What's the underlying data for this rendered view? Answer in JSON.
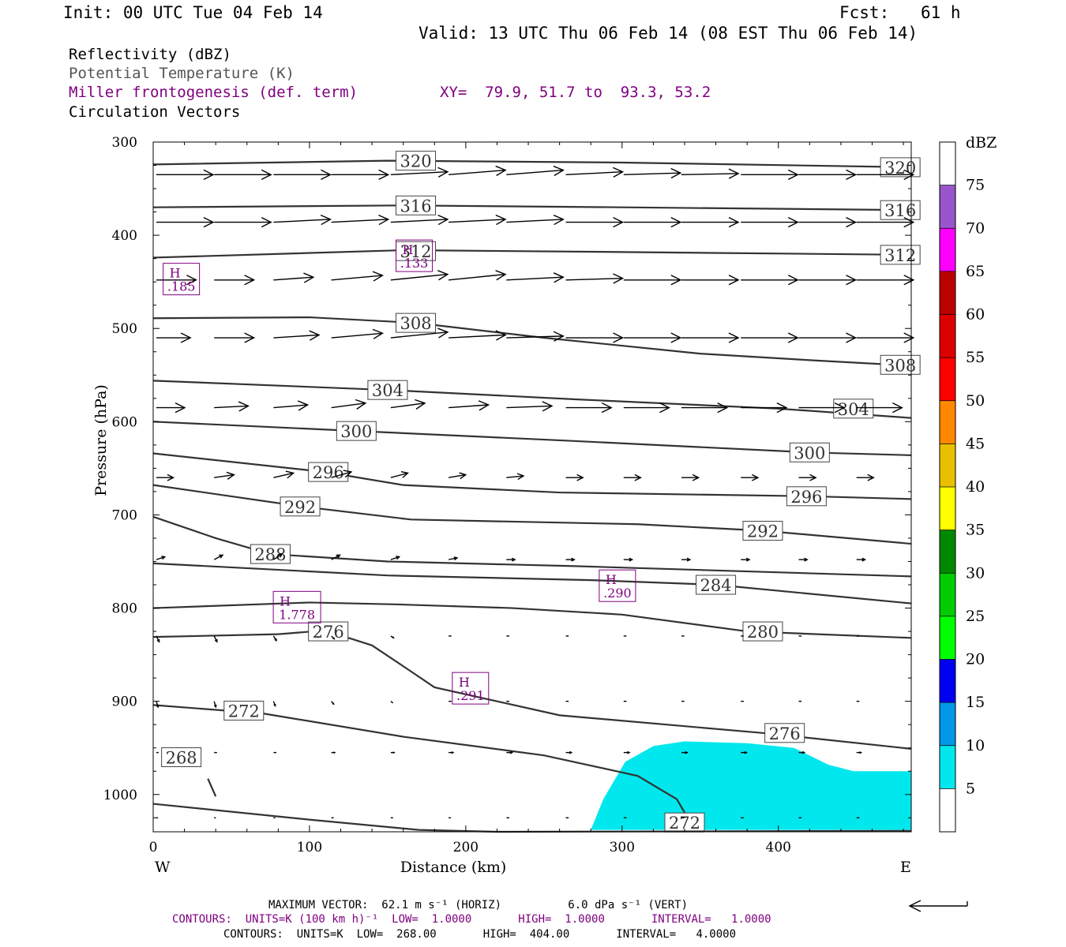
{
  "header": {
    "init": "Init: 00 UTC Tue 04 Feb 14",
    "fcst_label": "Fcst:",
    "fcst_value": "61 h",
    "valid": "Valid: 13 UTC Thu 06 Feb 14 (08 EST Thu 06 Feb 14)"
  },
  "fields": {
    "reflectivity": "Reflectivity (dBZ)",
    "theta": "Potential Temperature (K)",
    "frontogenesis": "Miller frontogenesis (def. term)",
    "xy": "XY=  79.9, 51.7 to  93.3, 53.2",
    "vectors": "Circulation Vectors"
  },
  "footer": {
    "max_vector": "MAXIMUM VECTOR:  62.1 m s⁻¹ (HORIZ)          6.0 dPa s⁻¹ (VERT)",
    "contours_fronto": "CONTOURS:  UNITS=K (100 km h)⁻¹  LOW=  1.0000       HIGH=  1.0000       INTERVAL=   1.0000",
    "contours_theta": "CONTOURS:  UNITS=K  LOW=  268.00       HIGH=  404.00       INTERVAL=   4.0000"
  },
  "colors": {
    "theta": "#333333",
    "fronto": "#800080",
    "refl_fill": "#00e8ee"
  },
  "chart_data": {
    "type": "cross-section",
    "xlabel": "Distance (km)",
    "ylabel": "Pressure (hPa)",
    "xlim": [
      0,
      485
    ],
    "ylim": [
      1040,
      300
    ],
    "x_ticks": [
      0,
      100,
      200,
      300,
      400
    ],
    "y_ticks": [
      300,
      400,
      500,
      600,
      700,
      800,
      900,
      1000
    ],
    "west_label": "W",
    "east_label": "E",
    "colorbar": {
      "title": "dBZ",
      "levels": [
        5,
        10,
        15,
        20,
        25,
        30,
        35,
        40,
        45,
        50,
        55,
        60,
        65,
        70,
        75
      ],
      "colors": [
        "#ffffff",
        "#00e8ee",
        "#0098e8",
        "#0000f0",
        "#00ff00",
        "#00cc00",
        "#008800",
        "#ffff00",
        "#e8c000",
        "#ff8800",
        "#ff0000",
        "#dd0000",
        "#bb0000",
        "#ff00ff",
        "#9955cc",
        "#ffffff"
      ]
    },
    "theta_contours": [
      {
        "value": 320,
        "points": [
          [
            0,
            324
          ],
          [
            150,
            320
          ],
          [
            300,
            322
          ],
          [
            485,
            327
          ]
        ],
        "labels": [
          [
            168,
            320
          ],
          [
            478,
            327
          ]
        ]
      },
      {
        "value": 316,
        "points": [
          [
            0,
            370
          ],
          [
            160,
            368
          ],
          [
            300,
            370
          ],
          [
            485,
            373
          ]
        ],
        "labels": [
          [
            168,
            368
          ],
          [
            478,
            373
          ]
        ]
      },
      {
        "value": 312,
        "points": [
          [
            0,
            424
          ],
          [
            160,
            416
          ],
          [
            300,
            418
          ],
          [
            485,
            421
          ]
        ],
        "labels": [
          [
            168,
            417
          ],
          [
            478,
            421
          ]
        ]
      },
      {
        "value": 308,
        "points": [
          [
            0,
            489
          ],
          [
            100,
            488
          ],
          [
            168,
            494
          ],
          [
            250,
            510
          ],
          [
            350,
            527
          ],
          [
            420,
            534
          ],
          [
            485,
            540
          ]
        ],
        "labels": [
          [
            168,
            494
          ],
          [
            478,
            539
          ]
        ]
      },
      {
        "value": 304,
        "points": [
          [
            0,
            556
          ],
          [
            150,
            566
          ],
          [
            270,
            576
          ],
          [
            400,
            586
          ],
          [
            485,
            596
          ]
        ],
        "labels": [
          [
            150,
            566
          ],
          [
            448,
            586
          ]
        ]
      },
      {
        "value": 300,
        "points": [
          [
            0,
            600
          ],
          [
            130,
            610
          ],
          [
            260,
            620
          ],
          [
            420,
            633
          ],
          [
            485,
            636
          ]
        ],
        "labels": [
          [
            130,
            610
          ],
          [
            420,
            633
          ]
        ]
      },
      {
        "value": 296,
        "points": [
          [
            0,
            634
          ],
          [
            110,
            654
          ],
          [
            160,
            668
          ],
          [
            260,
            676
          ],
          [
            420,
            680
          ],
          [
            485,
            683
          ]
        ],
        "labels": [
          [
            112,
            654
          ],
          [
            418,
            680
          ]
        ]
      },
      {
        "value": 292,
        "points": [
          [
            0,
            668
          ],
          [
            95,
            691
          ],
          [
            165,
            705
          ],
          [
            310,
            710
          ],
          [
            390,
            717
          ],
          [
            485,
            731
          ]
        ],
        "labels": [
          [
            94,
            691
          ],
          [
            390,
            717
          ]
        ]
      },
      {
        "value": 288,
        "points": [
          [
            0,
            702
          ],
          [
            40,
            725
          ],
          [
            75,
            742
          ],
          [
            150,
            750
          ],
          [
            270,
            755
          ],
          [
            485,
            766
          ]
        ],
        "labels": [
          [
            75,
            742
          ]
        ]
      },
      {
        "value": 284,
        "points": [
          [
            0,
            752
          ],
          [
            150,
            765
          ],
          [
            280,
            770
          ],
          [
            360,
            775
          ],
          [
            485,
            795
          ]
        ],
        "labels": [
          [
            360,
            775
          ]
        ]
      },
      {
        "value": 280,
        "points": [
          [
            0,
            800
          ],
          [
            100,
            794
          ],
          [
            155,
            796
          ],
          [
            230,
            800
          ],
          [
            300,
            807
          ],
          [
            380,
            825
          ],
          [
            485,
            832
          ]
        ],
        "labels": [
          [
            390,
            825
          ]
        ]
      },
      {
        "value": 276,
        "points": [
          [
            0,
            831
          ],
          [
            80,
            828
          ],
          [
            110,
            824
          ],
          [
            140,
            840
          ],
          [
            165,
            868
          ],
          [
            180,
            885
          ],
          [
            260,
            915
          ],
          [
            390,
            934
          ],
          [
            485,
            951
          ]
        ],
        "labels": [
          [
            112,
            825
          ],
          [
            404,
            934
          ]
        ]
      },
      {
        "value": 272,
        "points": [
          [
            0,
            904
          ],
          [
            70,
            913
          ],
          [
            160,
            938
          ],
          [
            250,
            958
          ],
          [
            310,
            980
          ],
          [
            335,
            1005
          ],
          [
            342,
            1025
          ]
        ],
        "labels": [
          [
            58,
            910
          ],
          [
            340,
            1030
          ]
        ]
      },
      {
        "value": 272,
        "points": [
          [
            0,
            1010
          ],
          [
            100,
            1027
          ],
          [
            170,
            1038
          ],
          [
            220,
            1040
          ],
          [
            485,
            1039
          ]
        ],
        "labels": []
      },
      {
        "value": 268,
        "points": [
          [
            35,
            983
          ],
          [
            40,
            1002
          ]
        ],
        "labels": [
          [
            18,
            960
          ]
        ]
      }
    ],
    "fronto_maxima": [
      {
        "label": "H",
        "value": ".185",
        "x": 18,
        "p": 447
      },
      {
        "label": "H",
        "value": ".133",
        "x": 167,
        "p": 422
      },
      {
        "label": "H",
        "value": ".290",
        "x": 297,
        "p": 776
      },
      {
        "label": "H",
        "value": "1.778",
        "x": 92,
        "p": 799
      },
      {
        "label": "H",
        "value": ".291",
        "x": 203,
        "p": 886
      }
    ],
    "reflectivity_area": {
      "dbz_min": 5,
      "points": [
        [
          280,
          1038
        ],
        [
          288,
          1005
        ],
        [
          302,
          965
        ],
        [
          320,
          948
        ],
        [
          340,
          943
        ],
        [
          380,
          945
        ],
        [
          410,
          950
        ],
        [
          432,
          968
        ],
        [
          448,
          975
        ],
        [
          485,
          975
        ],
        [
          485,
          1038
        ],
        [
          280,
          1038
        ]
      ]
    },
    "vector_rows": [
      {
        "p": 335,
        "u": [
          1.0,
          1.0,
          1.0,
          1.0,
          1.0,
          1.0,
          1.0,
          1.0,
          1.0,
          1.0,
          1.0,
          1.0,
          1.0
        ],
        "w": [
          0,
          0,
          0,
          0,
          0.05,
          0.08,
          0.08,
          0.05,
          0.03,
          0.02,
          0,
          0,
          0
        ]
      },
      {
        "p": 386,
        "u": [
          1.0,
          1.0,
          1.0,
          1.0,
          1.0,
          1.0,
          1.0,
          1.0,
          1.0,
          1.0,
          1.0,
          1.0,
          1.0
        ],
        "w": [
          0,
          0,
          0.05,
          0.05,
          0.05,
          0.05,
          0.05,
          0,
          0,
          0,
          0,
          0,
          0
        ]
      },
      {
        "p": 448,
        "u": [
          0.7,
          0.7,
          0.7,
          0.9,
          1.0,
          1.0,
          1.0,
          1.0,
          1.0,
          1.0,
          1.0,
          1.0,
          1.0
        ],
        "w": [
          0,
          0,
          0.05,
          0.08,
          0.1,
          0.1,
          0.05,
          0.03,
          0,
          0,
          0,
          0,
          0
        ]
      },
      {
        "p": 510,
        "u": [
          0.6,
          0.7,
          0.8,
          0.9,
          1.0,
          1.0,
          1.0,
          1.0,
          1.0,
          1.0,
          1.0,
          1.0,
          1.0
        ],
        "w": [
          0,
          0,
          0.05,
          0.08,
          0.1,
          0.05,
          0.03,
          0,
          0,
          0,
          0,
          0,
          0
        ]
      },
      {
        "p": 585,
        "u": [
          0.5,
          0.6,
          0.6,
          0.6,
          0.6,
          0.7,
          0.8,
          0.8,
          0.8,
          0.8,
          0.8,
          0.8,
          0.8
        ],
        "w": [
          0,
          0.03,
          0.05,
          0.08,
          0.08,
          0.05,
          0.03,
          0,
          0,
          0,
          0,
          0,
          0
        ]
      },
      {
        "p": 660,
        "u": [
          0.3,
          0.35,
          0.35,
          0.35,
          0.3,
          0.3,
          0.3,
          0.3,
          0.3,
          0.3,
          0.3,
          0.3,
          0.3
        ],
        "w": [
          0,
          0.05,
          0.08,
          0.1,
          0.08,
          0.05,
          0.03,
          0,
          0,
          0,
          0,
          0,
          0
        ]
      },
      {
        "p": 748,
        "u": [
          0.15,
          0.15,
          0.15,
          0.15,
          0.15,
          0.15,
          0.15,
          0.15,
          0.15,
          0.15,
          0.15,
          0.15,
          0.15
        ],
        "w": [
          0.05,
          0.08,
          0.1,
          0.08,
          0.05,
          0.03,
          0,
          0,
          0,
          0,
          0,
          0,
          0
        ]
      },
      {
        "p": 830,
        "u": [
          0.05,
          0.05,
          0.05,
          0.05,
          0.05,
          0.05,
          0.05,
          0.05,
          0.05,
          0.05,
          0.05,
          0.05,
          0.05
        ],
        "w": [
          -0.1,
          -0.1,
          -0.08,
          -0.05,
          -0.03,
          0,
          0,
          0,
          0,
          0,
          0,
          0,
          0
        ]
      },
      {
        "p": 900,
        "u": [
          0.03,
          0.03,
          0.03,
          0.04,
          0.04,
          0.05,
          0.05,
          0.05,
          0.05,
          0.05,
          0.05,
          0.05,
          0.05
        ],
        "w": [
          -0.1,
          -0.1,
          -0.08,
          -0.05,
          -0.03,
          0,
          0,
          0,
          0,
          0,
          0,
          0,
          0
        ]
      },
      {
        "p": 955,
        "u": [
          0.04,
          0.05,
          0.05,
          0.06,
          0.06,
          0.08,
          0.1,
          0.1,
          0.1,
          0.1,
          0.1,
          0.1,
          0.08
        ],
        "w": [
          0,
          0,
          0,
          0,
          0,
          0,
          0,
          0,
          0,
          0,
          0,
          0,
          0
        ]
      },
      {
        "p": 1025,
        "u": [
          0.03,
          0.03,
          0.03,
          0.04,
          0.04,
          0.04,
          0.05,
          0.05,
          0.05,
          0.05,
          0.05,
          0.05,
          0.05
        ],
        "w": [
          0,
          0,
          0,
          0,
          0,
          0,
          0,
          0,
          0,
          0,
          0,
          0,
          0
        ]
      }
    ],
    "vector_x": [
      0,
      37,
      75,
      112,
      150,
      187,
      224,
      262,
      299,
      336,
      374,
      411,
      448
    ]
  }
}
